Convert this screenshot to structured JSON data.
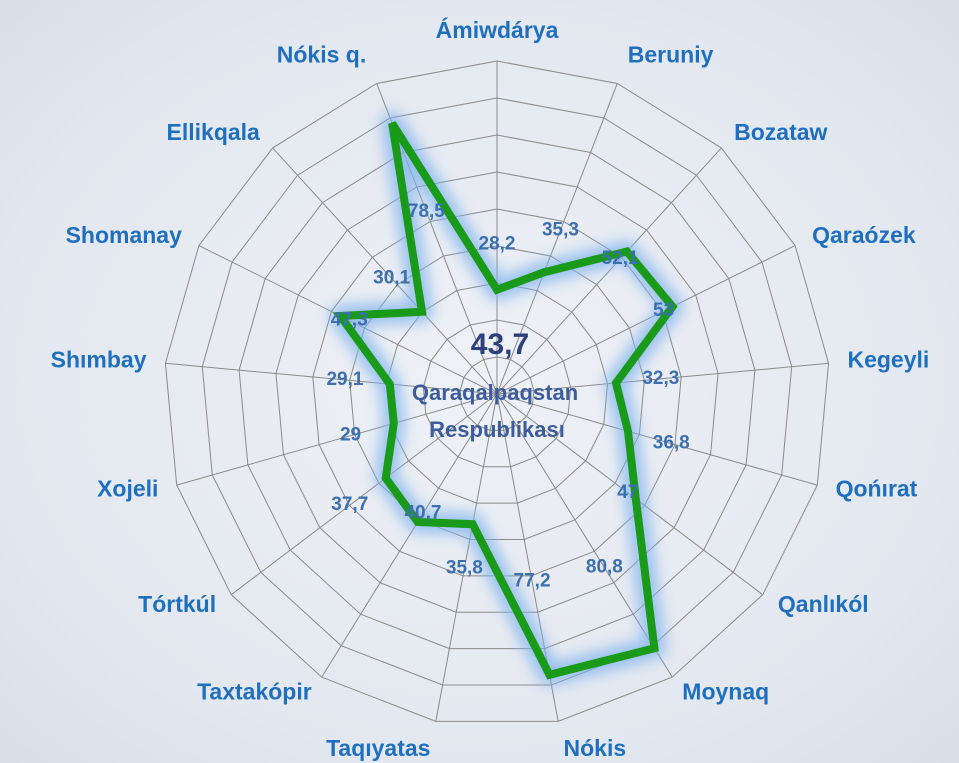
{
  "chart_data": {
    "type": "radar",
    "categories": [
      "Ámiwdárya",
      "Beruniy",
      "Bozataw",
      "Qaraózek",
      "Kegeyli",
      "Qońırat",
      "Qanlıkól",
      "Moynaq",
      "Nókis",
      "Taqıyatas",
      "Taxtakópir",
      "Tórtkúl",
      "Xojeli",
      "Shımbay",
      "Shomanay",
      "Ellikqala",
      "Nókis q."
    ],
    "values": [
      28.2,
      35.3,
      52.1,
      53,
      32.3,
      36.8,
      47,
      80.8,
      77.2,
      35.8,
      40.7,
      37.7,
      29,
      29.1,
      47.3,
      30.1,
      78.5
    ],
    "value_labels": [
      "28,2",
      "35,3",
      "52,1",
      "53",
      "32,3",
      "36,8",
      "47",
      "80,8",
      "77,2",
      "35,8",
      "40,7",
      "37,7",
      "29",
      "29,1",
      "47,3",
      "30,1",
      "78,5"
    ],
    "color": "#199a19",
    "ylim": [
      0,
      90
    ],
    "yticks": [
      0,
      10,
      20,
      30,
      40,
      50,
      60,
      70,
      80,
      90
    ],
    "grid": true,
    "center_value": 43.7,
    "center_value_label": "43,7",
    "center_text": [
      "Qaraqalpaqstan",
      "Respublikası"
    ]
  }
}
